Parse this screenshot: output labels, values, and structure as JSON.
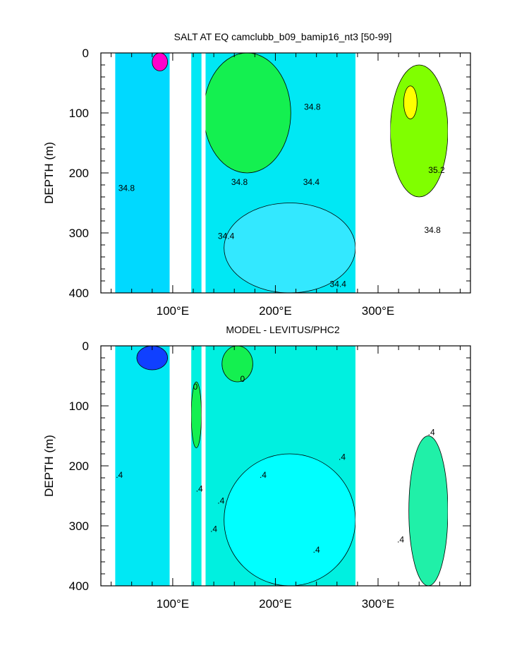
{
  "chart_data": [
    {
      "type": "contour",
      "title": "SALT AT EQ camclubb_b09_bamip16_nt3 [50-99]",
      "xlabel": "",
      "ylabel": "DEPTH (m)",
      "xlim": [
        30,
        390
      ],
      "ylim": [
        400,
        0
      ],
      "y_inverted": true,
      "x_ticks": [
        {
          "value": 100,
          "label": "100°E"
        },
        {
          "value": 200,
          "label": "200°E"
        },
        {
          "value": 300,
          "label": "300°E"
        }
      ],
      "y_ticks": [
        {
          "value": 0,
          "label": "0"
        },
        {
          "value": 100,
          "label": "100"
        },
        {
          "value": 200,
          "label": "200"
        },
        {
          "value": 300,
          "label": "300"
        },
        {
          "value": 400,
          "label": "400"
        }
      ],
      "masked_land_longitudes": [
        [
          97,
          118
        ],
        [
          128,
          132
        ],
        [
          278,
          312
        ],
        [
          368,
          390
        ]
      ],
      "regions": [
        {
          "name": "indian_ocean",
          "fill": "#00d9ff",
          "x_range": [
            44,
            97
          ]
        },
        {
          "name": "indian_surface_fresh_core",
          "fill": "#ff00cc",
          "x": [
            80,
            95
          ],
          "depth": [
            0,
            30
          ]
        },
        {
          "name": "pacific_interior",
          "fill": "#00e8f4",
          "x_range": [
            118,
            278
          ]
        },
        {
          "name": "pacific_upper_high_salinity",
          "fill": "#14f050",
          "x": [
            130,
            215
          ],
          "depth": [
            0,
            200
          ]
        },
        {
          "name": "pacific_lower_fresh",
          "fill": "#33e8ff",
          "x": [
            150,
            278
          ],
          "depth": [
            250,
            400
          ]
        },
        {
          "name": "atlantic_high_salinity",
          "fill": "#80ff00",
          "x": [
            312,
            368
          ],
          "depth": [
            20,
            240
          ]
        },
        {
          "name": "atlantic_salinity_max",
          "fill": "#ffff00",
          "x": [
            325,
            338
          ],
          "depth": [
            55,
            110
          ]
        }
      ],
      "contour_labels": [
        {
          "text": "34.8",
          "x": 236,
          "depth": 90
        },
        {
          "text": "34.8",
          "x": 55,
          "depth": 225
        },
        {
          "text": "34.8",
          "x": 165,
          "depth": 215
        },
        {
          "text": "34.4",
          "x": 235,
          "depth": 215
        },
        {
          "text": "34.4",
          "x": 152,
          "depth": 305
        },
        {
          "text": "35.2",
          "x": 357,
          "depth": 195
        },
        {
          "text": "34.8",
          "x": 353,
          "depth": 295
        },
        {
          "text": "34.4",
          "x": 261,
          "depth": 385
        }
      ]
    },
    {
      "type": "contour",
      "title": "MODEL - LEVITUS/PHC2",
      "xlabel": "",
      "ylabel": "DEPTH (m)",
      "xlim": [
        30,
        390
      ],
      "ylim": [
        400,
        0
      ],
      "y_inverted": true,
      "x_ticks": [
        {
          "value": 100,
          "label": "100°E"
        },
        {
          "value": 200,
          "label": "200°E"
        },
        {
          "value": 300,
          "label": "300°E"
        }
      ],
      "y_ticks": [
        {
          "value": 0,
          "label": "0"
        },
        {
          "value": 100,
          "label": "100"
        },
        {
          "value": 200,
          "label": "200"
        },
        {
          "value": 300,
          "label": "300"
        },
        {
          "value": 400,
          "label": "400"
        }
      ],
      "masked_land_longitudes": [
        [
          97,
          118
        ],
        [
          128,
          132
        ],
        [
          278,
          312
        ],
        [
          368,
          390
        ]
      ],
      "regions": [
        {
          "name": "indian_ocean",
          "fill": "#00e8f4",
          "x_range": [
            44,
            97
          ]
        },
        {
          "name": "indian_surface_fresh_core",
          "fill": "#1040ff",
          "x": [
            65,
            95
          ],
          "depth": [
            0,
            40
          ]
        },
        {
          "name": "pacific_interior",
          "fill": "#00f0e0",
          "x_range": [
            118,
            278
          ]
        },
        {
          "name": "pacific_surface_salty",
          "fill": "#14f050",
          "x": [
            148,
            178
          ],
          "depth": [
            0,
            60
          ]
        },
        {
          "name": "pacific_western_salty",
          "fill": "#14f050",
          "x": [
            118,
            128
          ],
          "depth": [
            60,
            170
          ]
        },
        {
          "name": "pacific_lower_fresh",
          "fill": "#00ffff",
          "x": [
            150,
            278
          ],
          "depth": [
            180,
            400
          ]
        },
        {
          "name": "atlantic_positive",
          "fill": "#20f0a8",
          "x": [
            330,
            368
          ],
          "depth": [
            150,
            400
          ]
        }
      ],
      "contour_labels": [
        {
          "text": "0",
          "x": 168,
          "depth": 55
        },
        {
          "text": "0",
          "x": 122,
          "depth": 68
        },
        {
          "text": ".4",
          "x": 48,
          "depth": 215
        },
        {
          "text": ".4",
          "x": 126,
          "depth": 238
        },
        {
          "text": ".4",
          "x": 188,
          "depth": 215
        },
        {
          "text": ".4",
          "x": 147,
          "depth": 258
        },
        {
          "text": ".4",
          "x": 265,
          "depth": 185
        },
        {
          "text": ".4",
          "x": 140,
          "depth": 305
        },
        {
          "text": ".4",
          "x": 240,
          "depth": 340
        },
        {
          "text": ".4",
          "x": 352,
          "depth": 144
        },
        {
          "text": ".4",
          "x": 322,
          "depth": 323
        }
      ]
    }
  ]
}
